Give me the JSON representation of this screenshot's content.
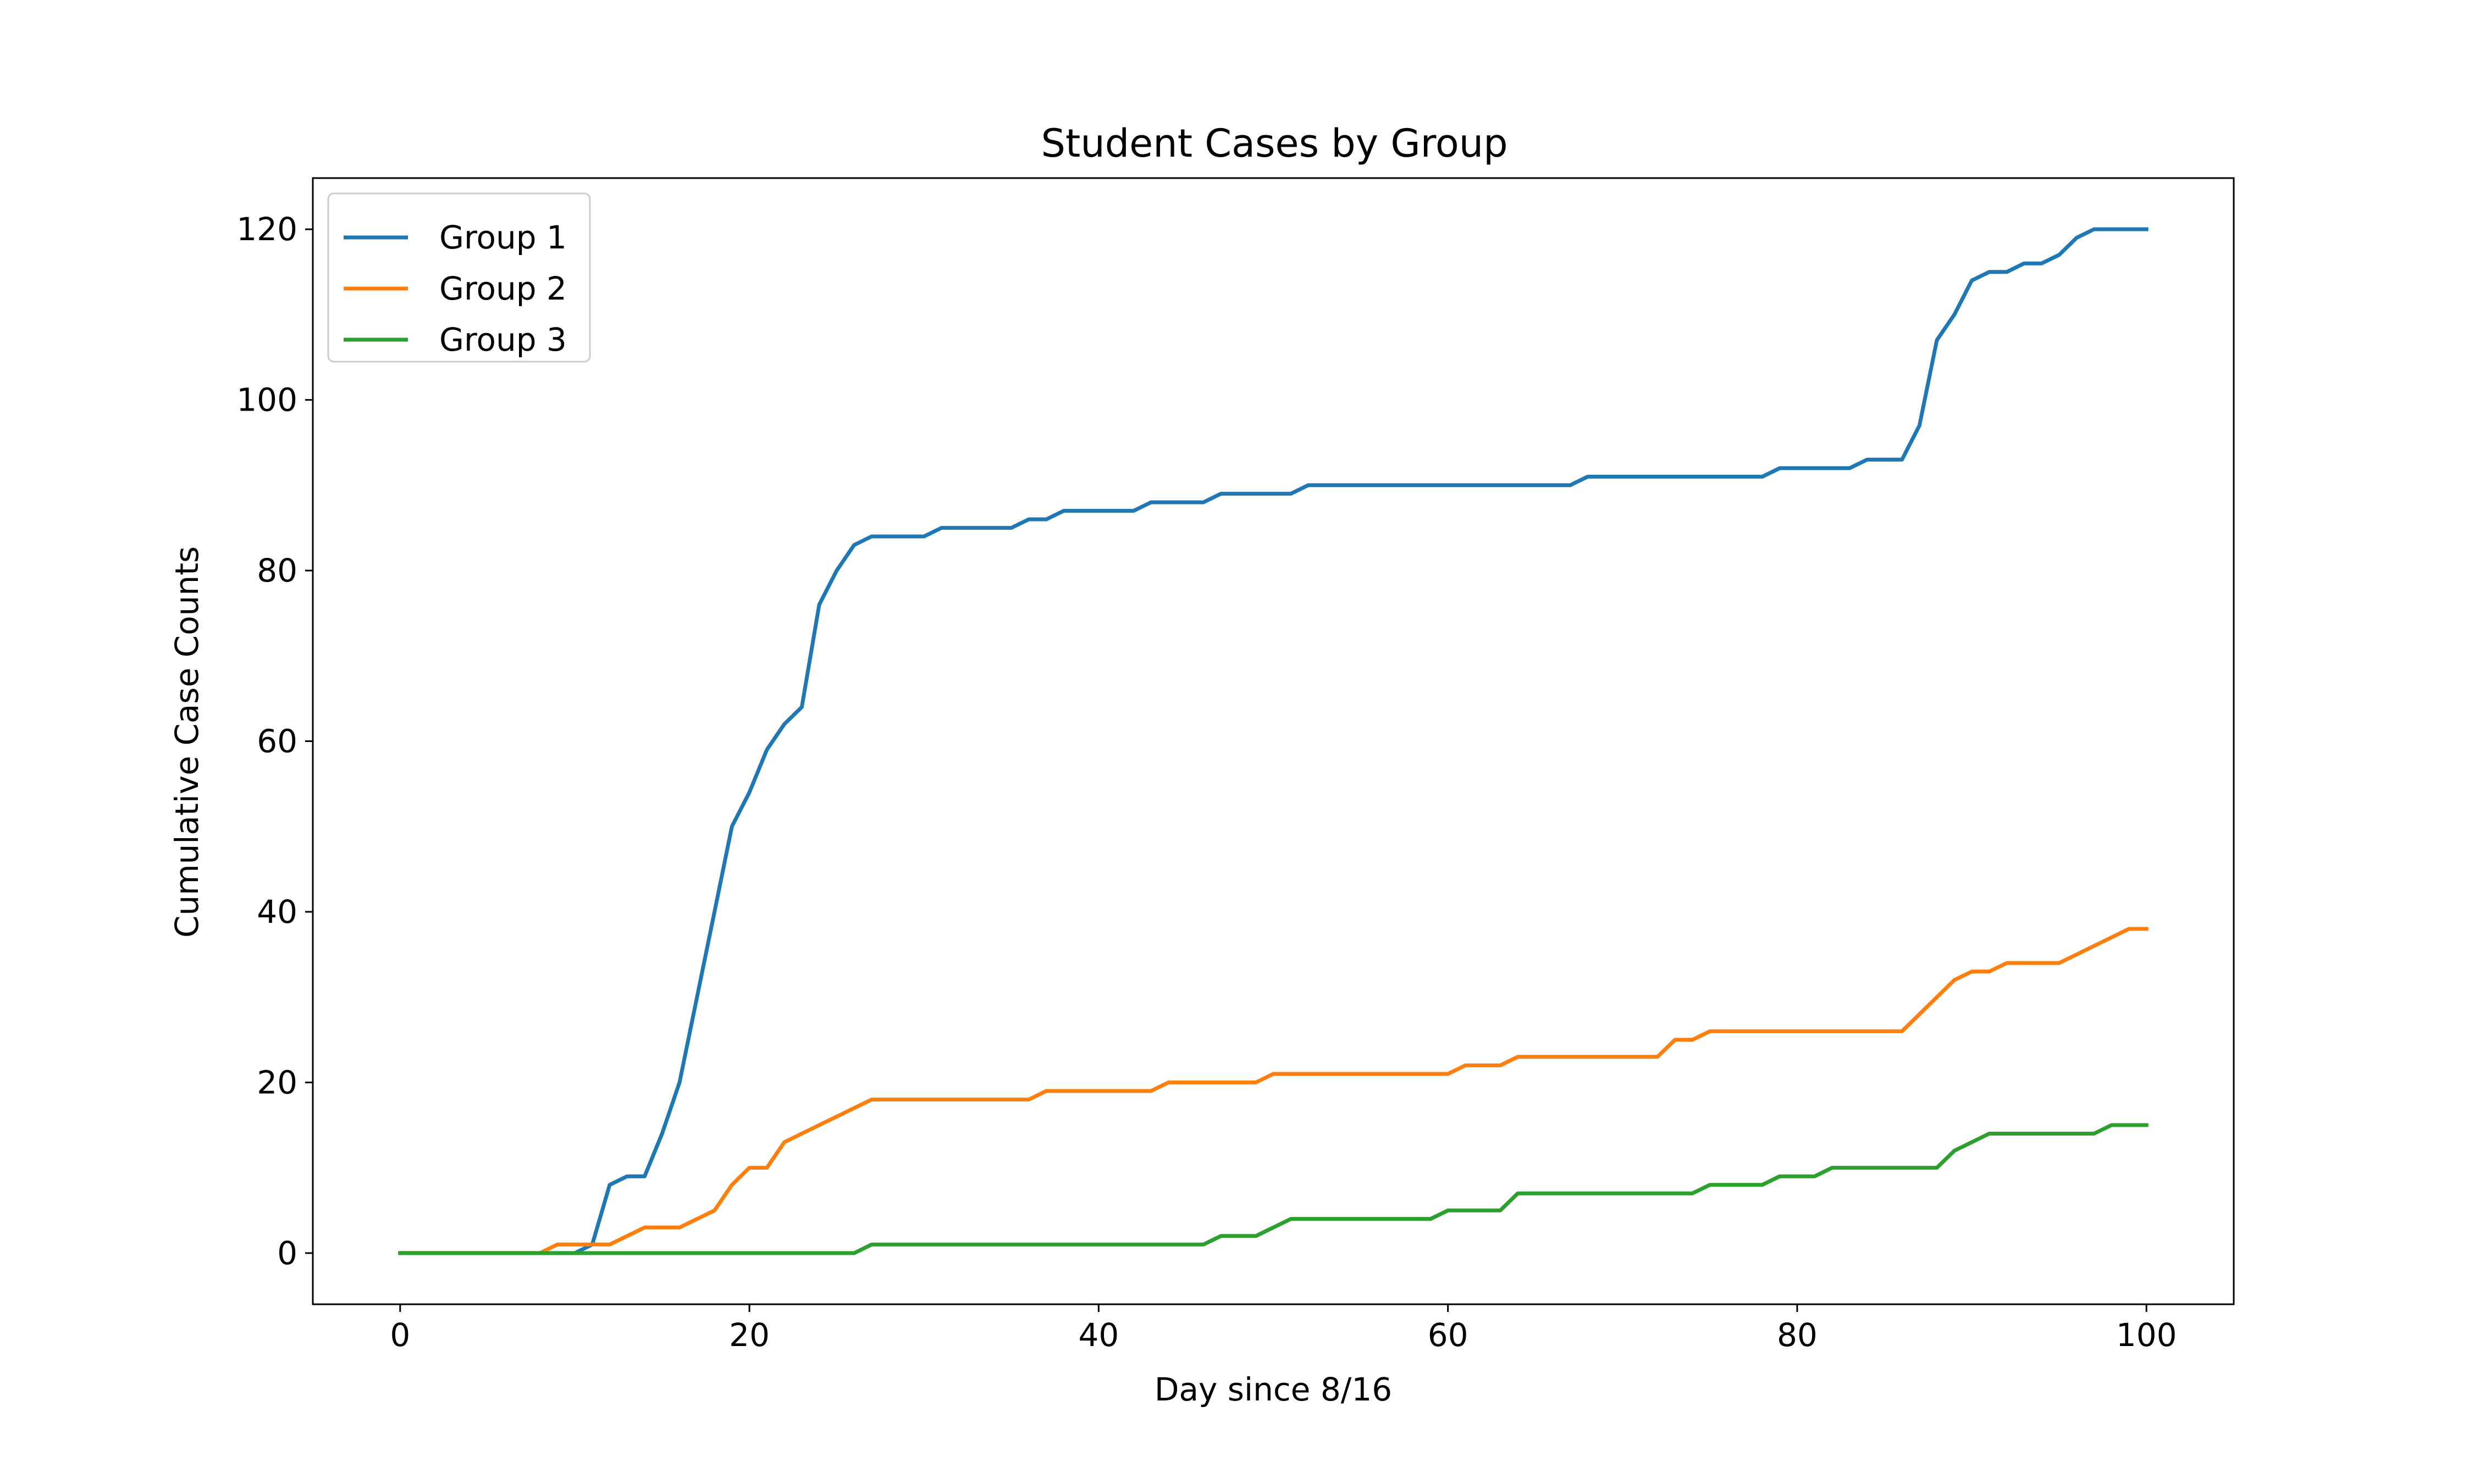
{
  "chart_data": {
    "type": "line",
    "title": "Student Cases by Group",
    "xlabel": "Day since 8/16",
    "ylabel": "Cumulative Case Counts",
    "xlim": [
      -5,
      105
    ],
    "ylim": [
      -6,
      126
    ],
    "xticks": [
      0,
      20,
      40,
      60,
      80,
      100
    ],
    "yticks": [
      0,
      20,
      40,
      60,
      80,
      100,
      120
    ],
    "grid": false,
    "legend_position": "top-left",
    "series": [
      {
        "name": "Group 1",
        "color": "#1f77b4",
        "x": [
          0,
          1,
          2,
          3,
          4,
          5,
          6,
          7,
          8,
          9,
          10,
          11,
          12,
          13,
          14,
          15,
          16,
          17,
          18,
          19,
          20,
          21,
          22,
          23,
          24,
          25,
          26,
          27,
          28,
          29,
          30,
          31,
          32,
          33,
          34,
          35,
          36,
          37,
          38,
          39,
          40,
          41,
          42,
          43,
          44,
          45,
          46,
          47,
          48,
          49,
          50,
          51,
          52,
          53,
          54,
          55,
          56,
          57,
          58,
          59,
          60,
          61,
          62,
          63,
          64,
          65,
          66,
          67,
          68,
          69,
          70,
          71,
          72,
          73,
          74,
          75,
          76,
          77,
          78,
          79,
          80,
          81,
          82,
          83,
          84,
          85,
          86,
          87,
          88,
          89,
          90,
          91,
          92,
          93,
          94,
          95,
          96,
          97,
          98,
          99,
          100
        ],
        "y": [
          0,
          0,
          0,
          0,
          0,
          0,
          0,
          0,
          0,
          0,
          0,
          1,
          8,
          9,
          9,
          14,
          20,
          30,
          40,
          50,
          54,
          59,
          62,
          64,
          76,
          80,
          83,
          84,
          84,
          84,
          84,
          85,
          85,
          85,
          85,
          85,
          86,
          86,
          87,
          87,
          87,
          87,
          87,
          88,
          88,
          88,
          88,
          89,
          89,
          89,
          89,
          89,
          90,
          90,
          90,
          90,
          90,
          90,
          90,
          90,
          90,
          90,
          90,
          90,
          90,
          90,
          90,
          90,
          91,
          91,
          91,
          91,
          91,
          91,
          91,
          91,
          91,
          91,
          91,
          92,
          92,
          92,
          92,
          92,
          93,
          93,
          93,
          97,
          107,
          110,
          114,
          115,
          115,
          116,
          116,
          117,
          119,
          120,
          120,
          120,
          120
        ]
      },
      {
        "name": "Group 2",
        "color": "#ff7f0e",
        "x": [
          0,
          1,
          2,
          3,
          4,
          5,
          6,
          7,
          8,
          9,
          10,
          11,
          12,
          13,
          14,
          15,
          16,
          17,
          18,
          19,
          20,
          21,
          22,
          23,
          24,
          25,
          26,
          27,
          28,
          29,
          30,
          31,
          32,
          33,
          34,
          35,
          36,
          37,
          38,
          39,
          40,
          41,
          42,
          43,
          44,
          45,
          46,
          47,
          48,
          49,
          50,
          51,
          52,
          53,
          54,
          55,
          56,
          57,
          58,
          59,
          60,
          61,
          62,
          63,
          64,
          65,
          66,
          67,
          68,
          69,
          70,
          71,
          72,
          73,
          74,
          75,
          76,
          77,
          78,
          79,
          80,
          81,
          82,
          83,
          84,
          85,
          86,
          87,
          88,
          89,
          90,
          91,
          92,
          93,
          94,
          95,
          96,
          97,
          98,
          99,
          100
        ],
        "y": [
          0,
          0,
          0,
          0,
          0,
          0,
          0,
          0,
          0,
          1,
          1,
          1,
          1,
          2,
          3,
          3,
          3,
          4,
          5,
          8,
          10,
          10,
          13,
          14,
          15,
          16,
          17,
          18,
          18,
          18,
          18,
          18,
          18,
          18,
          18,
          18,
          18,
          19,
          19,
          19,
          19,
          19,
          19,
          19,
          20,
          20,
          20,
          20,
          20,
          20,
          21,
          21,
          21,
          21,
          21,
          21,
          21,
          21,
          21,
          21,
          21,
          22,
          22,
          22,
          23,
          23,
          23,
          23,
          23,
          23,
          23,
          23,
          23,
          25,
          25,
          26,
          26,
          26,
          26,
          26,
          26,
          26,
          26,
          26,
          26,
          26,
          26,
          28,
          30,
          32,
          33,
          33,
          34,
          34,
          34,
          34,
          35,
          36,
          37,
          38,
          38
        ]
      },
      {
        "name": "Group 3",
        "color": "#2ca02c",
        "x": [
          0,
          1,
          2,
          3,
          4,
          5,
          6,
          7,
          8,
          9,
          10,
          11,
          12,
          13,
          14,
          15,
          16,
          17,
          18,
          19,
          20,
          21,
          22,
          23,
          24,
          25,
          26,
          27,
          28,
          29,
          30,
          31,
          32,
          33,
          34,
          35,
          36,
          37,
          38,
          39,
          40,
          41,
          42,
          43,
          44,
          45,
          46,
          47,
          48,
          49,
          50,
          51,
          52,
          53,
          54,
          55,
          56,
          57,
          58,
          59,
          60,
          61,
          62,
          63,
          64,
          65,
          66,
          67,
          68,
          69,
          70,
          71,
          72,
          73,
          74,
          75,
          76,
          77,
          78,
          79,
          80,
          81,
          82,
          83,
          84,
          85,
          86,
          87,
          88,
          89,
          90,
          91,
          92,
          93,
          94,
          95,
          96,
          97,
          98,
          99,
          100
        ],
        "y": [
          0,
          0,
          0,
          0,
          0,
          0,
          0,
          0,
          0,
          0,
          0,
          0,
          0,
          0,
          0,
          0,
          0,
          0,
          0,
          0,
          0,
          0,
          0,
          0,
          0,
          0,
          0,
          1,
          1,
          1,
          1,
          1,
          1,
          1,
          1,
          1,
          1,
          1,
          1,
          1,
          1,
          1,
          1,
          1,
          1,
          1,
          1,
          2,
          2,
          2,
          3,
          4,
          4,
          4,
          4,
          4,
          4,
          4,
          4,
          4,
          5,
          5,
          5,
          5,
          7,
          7,
          7,
          7,
          7,
          7,
          7,
          7,
          7,
          7,
          7,
          8,
          8,
          8,
          8,
          9,
          9,
          9,
          10,
          10,
          10,
          10,
          10,
          10,
          10,
          12,
          13,
          14,
          14,
          14,
          14,
          14,
          14,
          14,
          15,
          15,
          15
        ]
      }
    ]
  }
}
